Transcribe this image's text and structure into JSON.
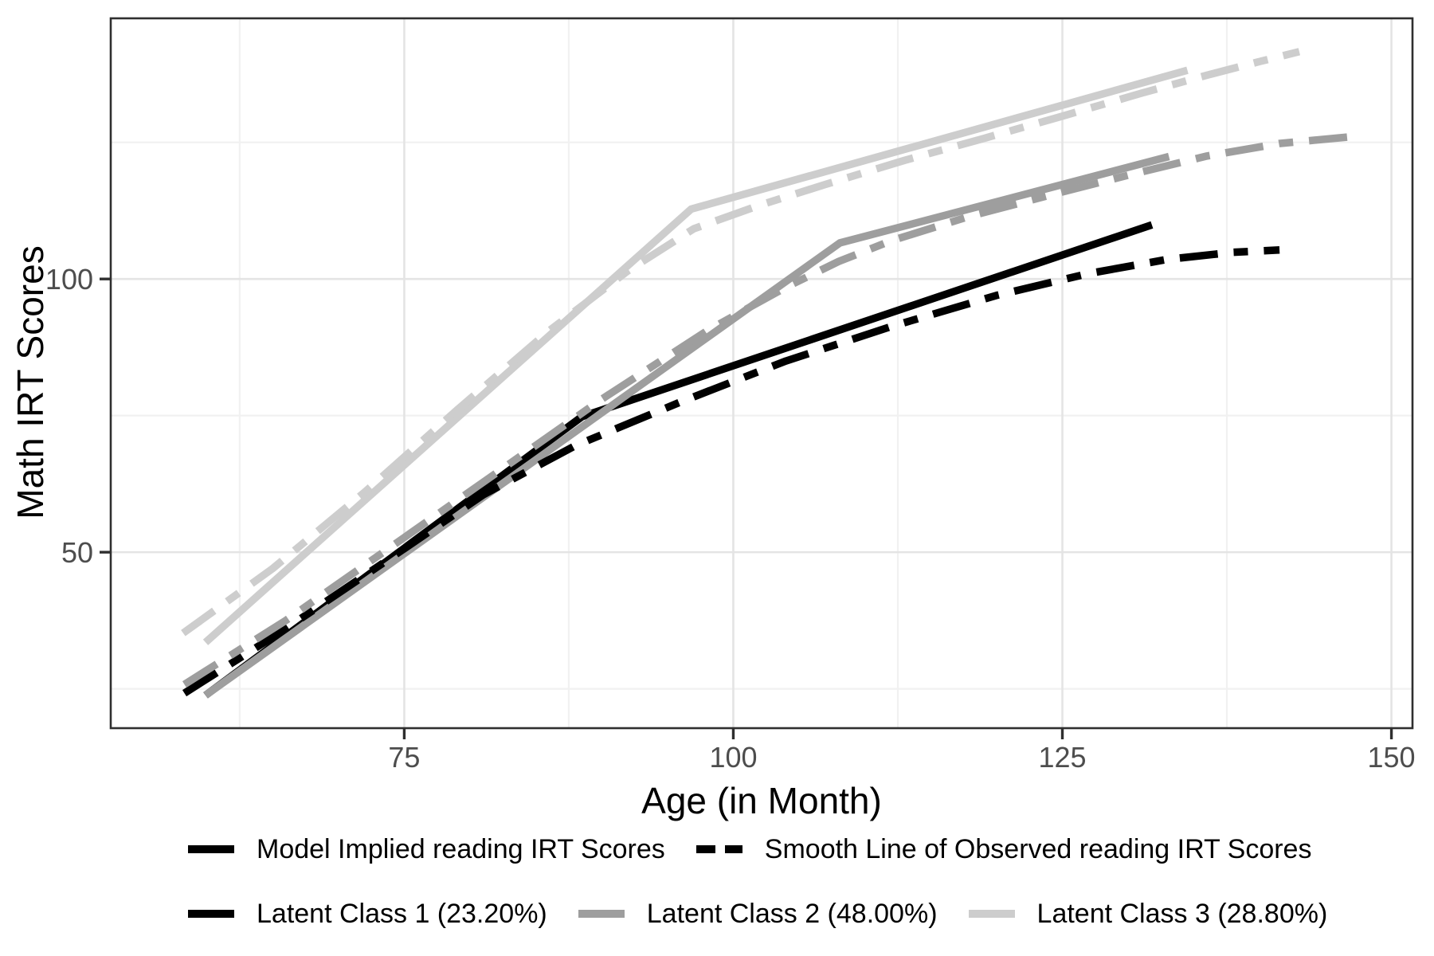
{
  "chart_data": {
    "type": "line",
    "title": "",
    "xlabel": "Age (in Month)",
    "ylabel": "Math IRT Scores",
    "xlim": [
      52.7,
      151.6
    ],
    "ylim": [
      17.8,
      147.7
    ],
    "x_major_ticks": [
      75,
      100,
      125,
      150
    ],
    "y_major_ticks": [
      50,
      100
    ],
    "x_minor_ticks": [
      62.5,
      87.5,
      112.5,
      137.5
    ],
    "y_minor_ticks": [
      25,
      75,
      125
    ],
    "grid": true,
    "legend_position": "bottom",
    "colors": {
      "class1": "#000000",
      "class2": "#9e9e9e",
      "class3": "#cdcdcd",
      "grid_major": "#e4e4e4",
      "grid_minor": "#f1f1f1",
      "panel_border": "#2f2f2f",
      "tick_mark": "#2f2f2f",
      "tick_text": "#4d4d4d"
    },
    "series": [
      {
        "name": "latent-class-1-model-implied",
        "class_key": "class1",
        "linetype": "solid",
        "points": [
          [
            59.9,
            23.8
          ],
          [
            88.5,
            74.8
          ],
          [
            131.8,
            109.9
          ]
        ]
      },
      {
        "name": "latent-class-2-model-implied",
        "class_key": "class2",
        "linetype": "solid",
        "points": [
          [
            59.9,
            23.8
          ],
          [
            108.1,
            106.6
          ],
          [
            133.1,
            122.4
          ]
        ]
      },
      {
        "name": "latent-class-3-model-implied",
        "class_key": "class3",
        "linetype": "solid",
        "points": [
          [
            59.9,
            33.5
          ],
          [
            96.8,
            112.8
          ],
          [
            134.5,
            138.2
          ]
        ]
      },
      {
        "name": "latent-class-1-smooth-observed",
        "class_key": "class1",
        "linetype": "twodash",
        "points": [
          [
            58.3,
            24.2
          ],
          [
            66,
            36
          ],
          [
            74,
            49
          ],
          [
            81,
            60.5
          ],
          [
            88,
            69.5
          ],
          [
            96,
            77.5
          ],
          [
            104,
            85
          ],
          [
            112,
            91.3
          ],
          [
            120,
            97
          ],
          [
            127,
            101
          ],
          [
            133,
            103.6
          ],
          [
            138,
            104.9
          ],
          [
            141.5,
            105.3
          ]
        ]
      },
      {
        "name": "latent-class-2-smooth-observed",
        "class_key": "class2",
        "linetype": "twodash",
        "points": [
          [
            58.3,
            25.8
          ],
          [
            66,
            37.5
          ],
          [
            74,
            51
          ],
          [
            82,
            64.5
          ],
          [
            90,
            78
          ],
          [
            98,
            90.5
          ],
          [
            104,
            98.5
          ],
          [
            108,
            103.2
          ],
          [
            112,
            107
          ],
          [
            118,
            111.5
          ],
          [
            124,
            115.3
          ],
          [
            130,
            119
          ],
          [
            136,
            122.5
          ],
          [
            141.5,
            124.8
          ],
          [
            147.2,
            126.1
          ]
        ]
      },
      {
        "name": "latent-class-3-smooth-observed",
        "class_key": "class3",
        "linetype": "twodash",
        "points": [
          [
            58.2,
            35.2
          ],
          [
            65,
            47
          ],
          [
            72,
            61
          ],
          [
            79,
            76
          ],
          [
            86,
            90.5
          ],
          [
            92,
            101.5
          ],
          [
            97,
            109.2
          ],
          [
            102,
            113.5
          ],
          [
            107,
            117.3
          ],
          [
            113,
            121.7
          ],
          [
            119,
            125.7
          ],
          [
            125,
            129.8
          ],
          [
            131,
            134
          ],
          [
            136,
            137.3
          ],
          [
            140,
            139.8
          ],
          [
            143,
            141.6
          ]
        ]
      }
    ]
  },
  "legend": {
    "row1": [
      {
        "label": "Model Implied reading IRT Scores",
        "linetype": "solid",
        "color": "#000000"
      },
      {
        "label": "Smooth Line of Observed reading IRT Scores",
        "linetype": "twodash",
        "color": "#000000"
      }
    ],
    "row2": [
      {
        "label": "Latent Class 1 (23.20%)",
        "linetype": "solid",
        "color": "#000000"
      },
      {
        "label": "Latent Class 2 (48.00%)",
        "linetype": "solid",
        "color": "#9e9e9e"
      },
      {
        "label": "Latent Class 3 (28.80%)",
        "linetype": "solid",
        "color": "#cdcdcd"
      }
    ]
  }
}
